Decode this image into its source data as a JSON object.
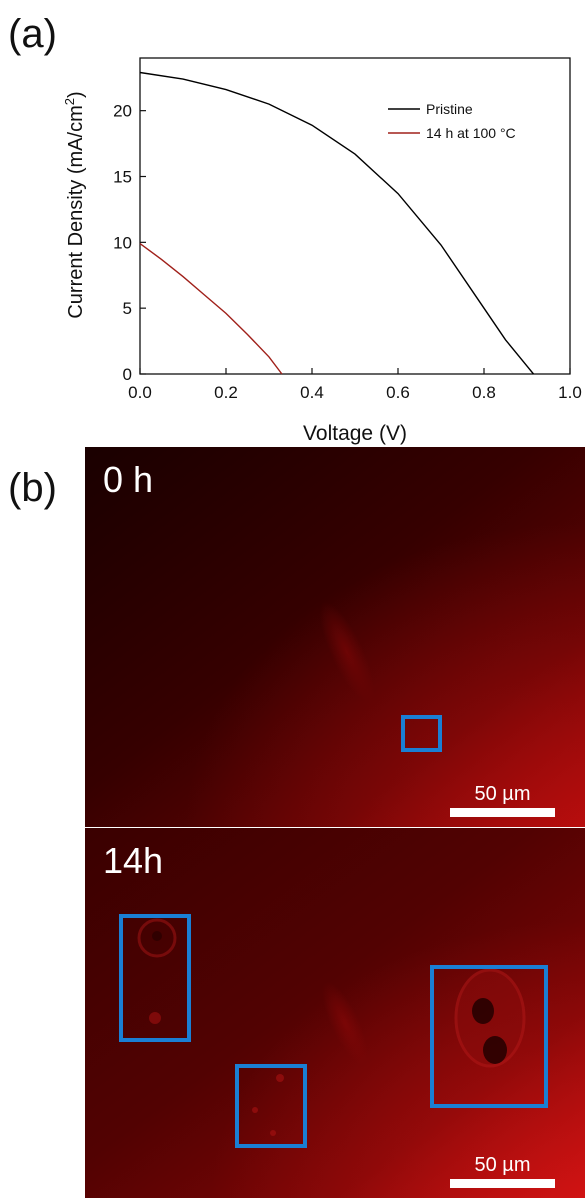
{
  "chart_data": {
    "type": "line",
    "panel_label": "(a)",
    "xlabel": "Voltage (V)",
    "ylabel": "Current Density (mA/cm",
    "ylabel_sup": "2",
    "ylabel_end": ")",
    "xlim": [
      0.0,
      1.0
    ],
    "ylim": [
      0,
      24
    ],
    "xticks": [
      "0.0",
      "0.2",
      "0.4",
      "0.6",
      "0.8",
      "1.0"
    ],
    "yticks": [
      "0",
      "5",
      "10",
      "15",
      "20"
    ],
    "legend_position": "top-right",
    "series": [
      {
        "name": "Pristine",
        "color": "#000000",
        "x": [
          0.0,
          0.1,
          0.2,
          0.3,
          0.4,
          0.5,
          0.6,
          0.7,
          0.8,
          0.85,
          0.9,
          0.915
        ],
        "y": [
          22.9,
          22.4,
          21.6,
          20.5,
          18.9,
          16.7,
          13.7,
          9.8,
          5.0,
          2.6,
          0.6,
          0.0
        ]
      },
      {
        "name": "14 h at 100 °C",
        "color": "#a0201a",
        "x": [
          0.0,
          0.05,
          0.1,
          0.15,
          0.2,
          0.25,
          0.3,
          0.33
        ],
        "y": [
          9.9,
          8.7,
          7.4,
          6.0,
          4.6,
          3.0,
          1.3,
          0.0
        ]
      }
    ]
  },
  "panel_b": {
    "panel_label": "(b)",
    "images": [
      {
        "time_label": "0 h",
        "scale_label": "50 µm"
      },
      {
        "time_label": "14h",
        "scale_label": "50 µm"
      }
    ],
    "box_color": "#1a7fd4"
  }
}
